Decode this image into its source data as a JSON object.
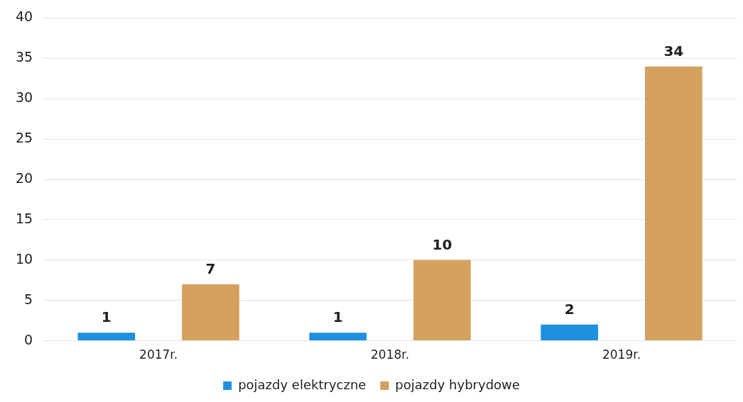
{
  "chart_data": {
    "type": "bar",
    "categories": [
      "2017r.",
      "2018r.",
      "2019r."
    ],
    "series": [
      {
        "name": "pojazdy elektryczne",
        "color": "#1f8fe0",
        "values": [
          1,
          1,
          2
        ]
      },
      {
        "name": "pojazdy hybrydowe",
        "color": "#d4a15e",
        "values": [
          7,
          10,
          34
        ]
      }
    ],
    "ylim": [
      0,
      40
    ],
    "yticks": [
      0,
      5,
      10,
      15,
      20,
      25,
      30,
      35,
      40
    ],
    "grid": "y",
    "legend": "bottom",
    "data_labels": true
  }
}
